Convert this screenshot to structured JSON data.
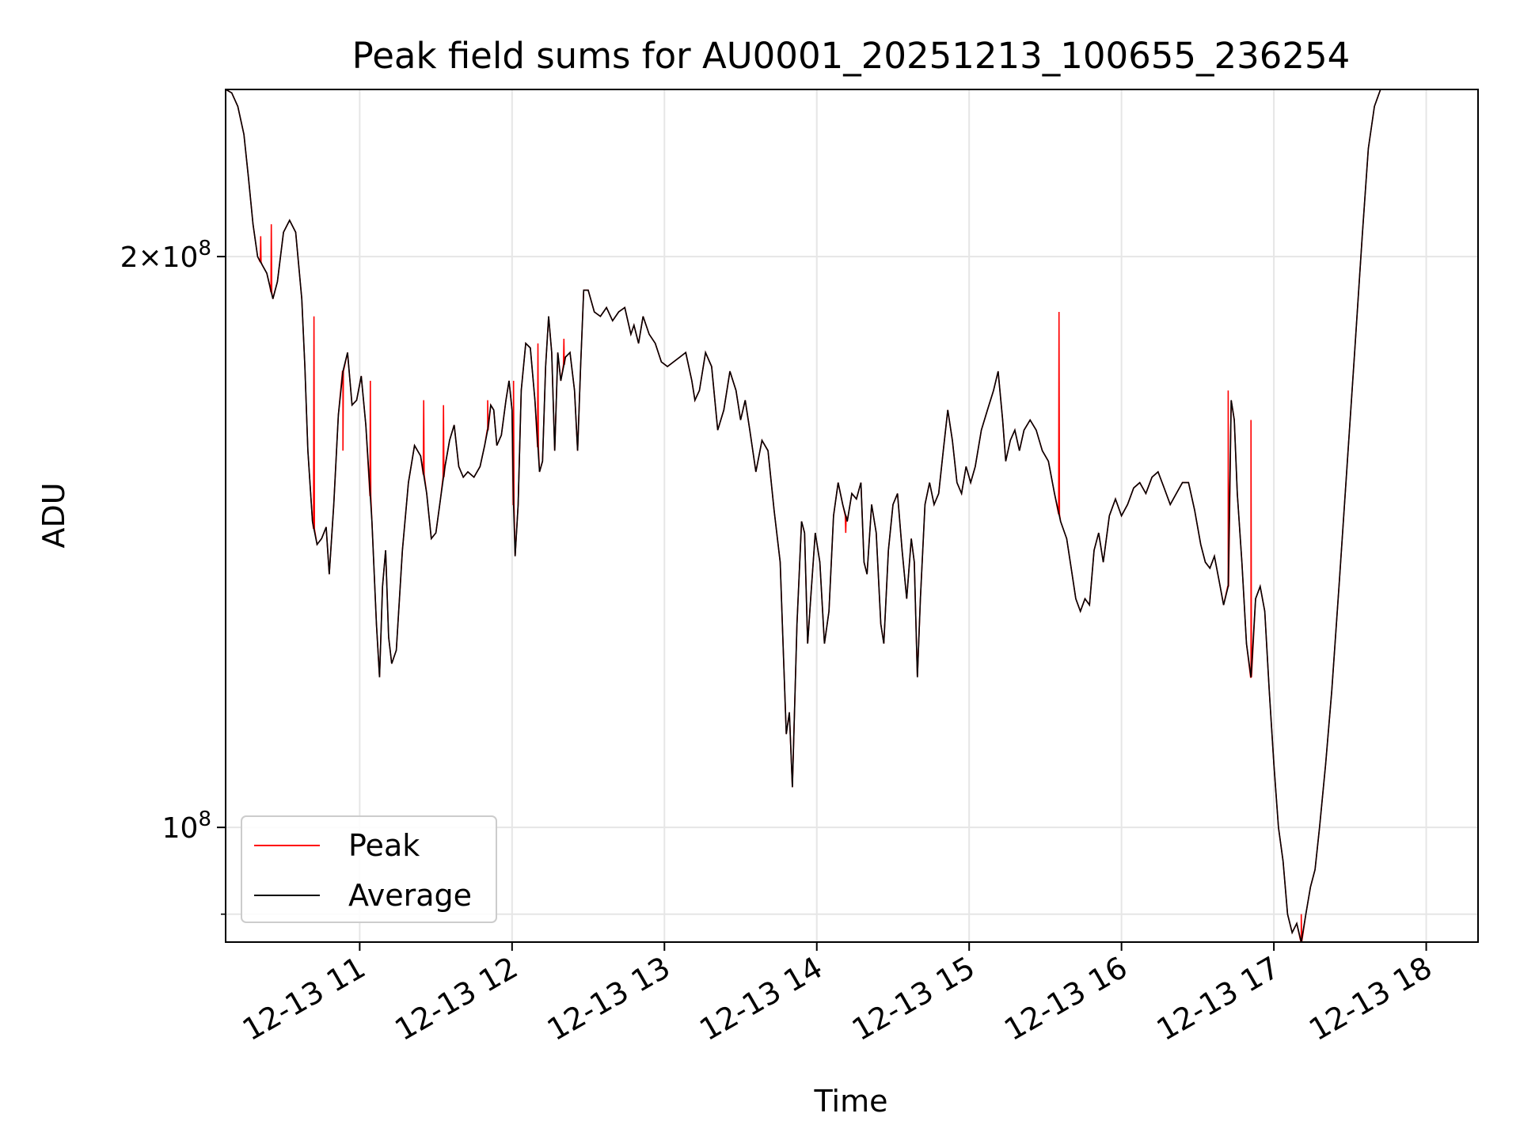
{
  "chart_data": {
    "type": "line",
    "title": "Peak field sums for AU0001_20251213_100655_236254",
    "xlabel": "Time",
    "ylabel": "ADU",
    "yscale": "log",
    "xlim": [
      10.12,
      18.34
    ],
    "ylim": [
      87000000,
      245000000
    ],
    "grid": true,
    "legend_position": "lower-left",
    "x_ticks": [
      {
        "value": 11,
        "label": "12-13 11"
      },
      {
        "value": 12,
        "label": "12-13 12"
      },
      {
        "value": 13,
        "label": "12-13 13"
      },
      {
        "value": 14,
        "label": "12-13 14"
      },
      {
        "value": 15,
        "label": "12-13 15"
      },
      {
        "value": 16,
        "label": "12-13 16"
      },
      {
        "value": 17,
        "label": "12-13 17"
      },
      {
        "value": 18,
        "label": "12-13 18"
      }
    ],
    "y_ticks_major": [
      {
        "value": 200000000,
        "mantissa": "2",
        "exponent": "8"
      },
      {
        "value": 100000000,
        "mantissa": "",
        "exponent": "8"
      }
    ],
    "y_ticks_minor": [
      90000000
    ],
    "series": [
      {
        "name": "Average",
        "color": "#000000",
        "points": [
          [
            10.12,
            245
          ],
          [
            10.16,
            244
          ],
          [
            10.2,
            240
          ],
          [
            10.24,
            232
          ],
          [
            10.27,
            220
          ],
          [
            10.3,
            208
          ],
          [
            10.33,
            200
          ],
          [
            10.36,
            198
          ],
          [
            10.39,
            196
          ],
          [
            10.41,
            193
          ],
          [
            10.43,
            190
          ],
          [
            10.46,
            194
          ],
          [
            10.5,
            206
          ],
          [
            10.54,
            209
          ],
          [
            10.58,
            206
          ],
          [
            10.62,
            190
          ],
          [
            10.64,
            175
          ],
          [
            10.66,
            158
          ],
          [
            10.69,
            145
          ],
          [
            10.72,
            141
          ],
          [
            10.75,
            142
          ],
          [
            10.78,
            144
          ],
          [
            10.8,
            136
          ],
          [
            10.83,
            148
          ],
          [
            10.86,
            165
          ],
          [
            10.89,
            174
          ],
          [
            10.92,
            178
          ],
          [
            10.95,
            167
          ],
          [
            10.98,
            168
          ],
          [
            11.01,
            173
          ],
          [
            11.04,
            163
          ],
          [
            11.08,
            145
          ],
          [
            11.11,
            128
          ],
          [
            11.13,
            120
          ],
          [
            11.15,
            134
          ],
          [
            11.17,
            140
          ],
          [
            11.19,
            126
          ],
          [
            11.21,
            122
          ],
          [
            11.24,
            124
          ],
          [
            11.28,
            140
          ],
          [
            11.32,
            152
          ],
          [
            11.36,
            159
          ],
          [
            11.4,
            157
          ],
          [
            11.44,
            150
          ],
          [
            11.47,
            142
          ],
          [
            11.5,
            143
          ],
          [
            11.53,
            149
          ],
          [
            11.56,
            155
          ],
          [
            11.59,
            160
          ],
          [
            11.62,
            163
          ],
          [
            11.65,
            155
          ],
          [
            11.68,
            153
          ],
          [
            11.71,
            154
          ],
          [
            11.75,
            153
          ],
          [
            11.79,
            155
          ],
          [
            11.82,
            159
          ],
          [
            11.84,
            162
          ],
          [
            11.86,
            167
          ],
          [
            11.88,
            166
          ],
          [
            11.9,
            159
          ],
          [
            11.93,
            161
          ],
          [
            11.96,
            168
          ],
          [
            11.98,
            172
          ],
          [
            12.0,
            166
          ],
          [
            12.01,
            148
          ],
          [
            12.02,
            139
          ],
          [
            12.04,
            148
          ],
          [
            12.06,
            170
          ],
          [
            12.09,
            180
          ],
          [
            12.12,
            179
          ],
          [
            12.15,
            168
          ],
          [
            12.18,
            154
          ],
          [
            12.2,
            156
          ],
          [
            12.22,
            175
          ],
          [
            12.24,
            186
          ],
          [
            12.26,
            178
          ],
          [
            12.28,
            158
          ],
          [
            12.3,
            178
          ],
          [
            12.32,
            172
          ],
          [
            12.35,
            177
          ],
          [
            12.38,
            178
          ],
          [
            12.41,
            170
          ],
          [
            12.43,
            158
          ],
          [
            12.45,
            175
          ],
          [
            12.47,
            192
          ],
          [
            12.5,
            192
          ],
          [
            12.54,
            187
          ],
          [
            12.58,
            186
          ],
          [
            12.62,
            188
          ],
          [
            12.66,
            185
          ],
          [
            12.7,
            187
          ],
          [
            12.74,
            188
          ],
          [
            12.78,
            182
          ],
          [
            12.8,
            184
          ],
          [
            12.83,
            180
          ],
          [
            12.86,
            186
          ],
          [
            12.9,
            182
          ],
          [
            12.94,
            180
          ],
          [
            12.98,
            176
          ],
          [
            13.02,
            175
          ],
          [
            13.06,
            176
          ],
          [
            13.1,
            177
          ],
          [
            13.14,
            178
          ],
          [
            13.18,
            172
          ],
          [
            13.2,
            168
          ],
          [
            13.23,
            170
          ],
          [
            13.27,
            178
          ],
          [
            13.31,
            175
          ],
          [
            13.35,
            162
          ],
          [
            13.39,
            166
          ],
          [
            13.43,
            174
          ],
          [
            13.47,
            170
          ],
          [
            13.5,
            164
          ],
          [
            13.53,
            168
          ],
          [
            13.56,
            162
          ],
          [
            13.6,
            154
          ],
          [
            13.64,
            160
          ],
          [
            13.68,
            158
          ],
          [
            13.72,
            147
          ],
          [
            13.76,
            138
          ],
          [
            13.78,
            124
          ],
          [
            13.8,
            112
          ],
          [
            13.82,
            115
          ],
          [
            13.84,
            105
          ],
          [
            13.87,
            128
          ],
          [
            13.9,
            145
          ],
          [
            13.92,
            143
          ],
          [
            13.94,
            125
          ],
          [
            13.96,
            132
          ],
          [
            13.99,
            143
          ],
          [
            14.02,
            138
          ],
          [
            14.05,
            125
          ],
          [
            14.08,
            130
          ],
          [
            14.11,
            146
          ],
          [
            14.14,
            152
          ],
          [
            14.17,
            148
          ],
          [
            14.2,
            145
          ],
          [
            14.23,
            150
          ],
          [
            14.26,
            149
          ],
          [
            14.29,
            152
          ],
          [
            14.31,
            138
          ],
          [
            14.33,
            136
          ],
          [
            14.36,
            148
          ],
          [
            14.39,
            143
          ],
          [
            14.42,
            128
          ],
          [
            14.44,
            125
          ],
          [
            14.47,
            140
          ],
          [
            14.5,
            148
          ],
          [
            14.53,
            150
          ],
          [
            14.56,
            140
          ],
          [
            14.59,
            132
          ],
          [
            14.62,
            142
          ],
          [
            14.64,
            138
          ],
          [
            14.66,
            120
          ],
          [
            14.68,
            132
          ],
          [
            14.71,
            148
          ],
          [
            14.74,
            152
          ],
          [
            14.77,
            148
          ],
          [
            14.8,
            150
          ],
          [
            14.83,
            158
          ],
          [
            14.86,
            166
          ],
          [
            14.89,
            160
          ],
          [
            14.92,
            152
          ],
          [
            14.95,
            150
          ],
          [
            14.98,
            155
          ],
          [
            15.01,
            152
          ],
          [
            15.04,
            155
          ],
          [
            15.08,
            162
          ],
          [
            15.12,
            166
          ],
          [
            15.16,
            170
          ],
          [
            15.19,
            174
          ],
          [
            15.22,
            164
          ],
          [
            15.24,
            156
          ],
          [
            15.27,
            160
          ],
          [
            15.3,
            162
          ],
          [
            15.33,
            158
          ],
          [
            15.36,
            162
          ],
          [
            15.4,
            164
          ],
          [
            15.44,
            162
          ],
          [
            15.48,
            158
          ],
          [
            15.52,
            156
          ],
          [
            15.56,
            150
          ],
          [
            15.6,
            145
          ],
          [
            15.64,
            142
          ],
          [
            15.67,
            137
          ],
          [
            15.7,
            132
          ],
          [
            15.73,
            130
          ],
          [
            15.76,
            132
          ],
          [
            15.79,
            131
          ],
          [
            15.82,
            140
          ],
          [
            15.85,
            143
          ],
          [
            15.88,
            138
          ],
          [
            15.92,
            146
          ],
          [
            15.96,
            149
          ],
          [
            16.0,
            146
          ],
          [
            16.04,
            148
          ],
          [
            16.08,
            151
          ],
          [
            16.12,
            152
          ],
          [
            16.16,
            150
          ],
          [
            16.2,
            153
          ],
          [
            16.24,
            154
          ],
          [
            16.28,
            151
          ],
          [
            16.32,
            148
          ],
          [
            16.36,
            150
          ],
          [
            16.4,
            152
          ],
          [
            16.44,
            152
          ],
          [
            16.48,
            147
          ],
          [
            16.52,
            141
          ],
          [
            16.55,
            138
          ],
          [
            16.58,
            137
          ],
          [
            16.61,
            139
          ],
          [
            16.64,
            135
          ],
          [
            16.67,
            131
          ],
          [
            16.7,
            134
          ],
          [
            16.72,
            168
          ],
          [
            16.74,
            164
          ],
          [
            16.76,
            150
          ],
          [
            16.79,
            138
          ],
          [
            16.82,
            125
          ],
          [
            16.85,
            120
          ],
          [
            16.88,
            132
          ],
          [
            16.91,
            134
          ],
          [
            16.94,
            130
          ],
          [
            16.97,
            118
          ],
          [
            17.0,
            108
          ],
          [
            17.03,
            100
          ],
          [
            17.06,
            96
          ],
          [
            17.09,
            90
          ],
          [
            17.12,
            88
          ],
          [
            17.15,
            89
          ],
          [
            17.18,
            87
          ],
          [
            17.21,
            90
          ],
          [
            17.24,
            93
          ],
          [
            17.27,
            95
          ],
          [
            17.3,
            100
          ],
          [
            17.34,
            108
          ],
          [
            17.38,
            118
          ],
          [
            17.43,
            135
          ],
          [
            17.48,
            155
          ],
          [
            17.53,
            178
          ],
          [
            17.58,
            205
          ],
          [
            17.62,
            228
          ],
          [
            17.66,
            240
          ],
          [
            17.7,
            245
          ],
          [
            17.76,
            245
          ]
        ]
      },
      {
        "name": "Peak",
        "color": "#ff0000",
        "spikes": [
          [
            10.35,
            205
          ],
          [
            10.42,
            208
          ],
          [
            10.7,
            186
          ],
          [
            10.89,
            158
          ],
          [
            11.07,
            172
          ],
          [
            11.42,
            168
          ],
          [
            11.55,
            167
          ],
          [
            11.84,
            168
          ],
          [
            12.01,
            172
          ],
          [
            12.17,
            180
          ],
          [
            12.34,
            181
          ],
          [
            14.19,
            143
          ],
          [
            15.59,
            187
          ],
          [
            16.7,
            170
          ],
          [
            16.85,
            164
          ],
          [
            17.18,
            90
          ]
        ]
      }
    ]
  }
}
